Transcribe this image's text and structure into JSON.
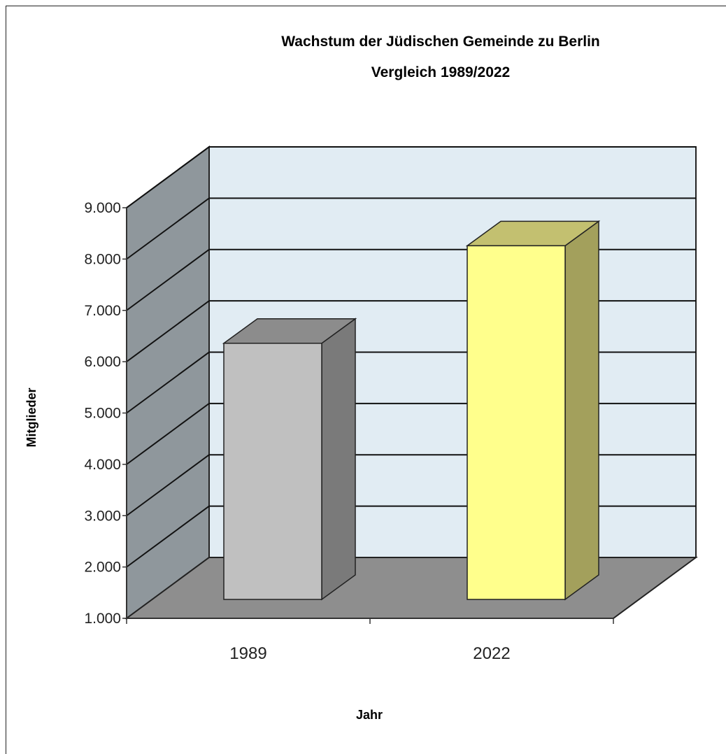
{
  "chart_data": {
    "type": "bar",
    "title": "Wachstum der Jüdischen Gemeinde zu Berlin",
    "subtitle": "Vergleich 1989/2022",
    "xlabel": "Jahr",
    "ylabel": "Mitglieder",
    "categories": [
      "1989",
      "2022"
    ],
    "series": [
      {
        "values": [
          6400,
          8300
        ]
      }
    ],
    "ylim": [
      1000,
      9000
    ],
    "y_ticks": [
      1000,
      2000,
      3000,
      4000,
      5000,
      6000,
      7000,
      8000,
      9000
    ],
    "y_tick_labels": [
      "1.000",
      "2.000",
      "3.000",
      "4.000",
      "5.000",
      "6.000",
      "7.000",
      "8.000",
      "9.000"
    ],
    "grid": true,
    "three_d": true,
    "colors": {
      "back_wall": "#e1ecf3",
      "side_wall": "#8f979c",
      "floor": "#8e8e8e",
      "bars": [
        "#c0c0c0",
        "#ffff8c"
      ],
      "bar_tops": [
        "#8c8c8c",
        "#c3c070"
      ],
      "bar_sides": [
        "#7a7a7a",
        "#a3a05c"
      ]
    }
  }
}
